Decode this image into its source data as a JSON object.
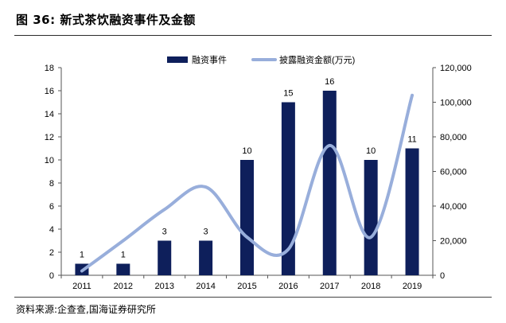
{
  "figure": {
    "title": "图 36:  新式茶饮融资事件及金额",
    "source": "资料来源:企查查,国海证券研究所"
  },
  "chart_data": {
    "type": "bar+line",
    "categories": [
      "2011",
      "2012",
      "2013",
      "2014",
      "2015",
      "2016",
      "2017",
      "2018",
      "2019"
    ],
    "series": [
      {
        "name": "融资事件",
        "type": "bar",
        "axis": "left",
        "color": "#0e1f5b",
        "values": [
          1,
          1,
          3,
          3,
          10,
          15,
          16,
          10,
          11
        ]
      },
      {
        "name": "披露融资金额(万元)",
        "type": "line",
        "axis": "right",
        "color": "#98aedb",
        "values": [
          2500,
          20000,
          38000,
          51000,
          22000,
          15000,
          75000,
          22000,
          104000
        ]
      }
    ],
    "left_axis": {
      "min": 0,
      "max": 18,
      "ticks": [
        "0",
        "2",
        "4",
        "6",
        "8",
        "10",
        "12",
        "14",
        "16",
        "18"
      ]
    },
    "right_axis": {
      "min": 0,
      "max": 120000,
      "ticks": [
        "0",
        "20,000",
        "40,000",
        "60,000",
        "80,000",
        "100,000",
        "120,000"
      ]
    },
    "data_labels": [
      "1",
      "1",
      "3",
      "3",
      "10",
      "15",
      "16",
      "10",
      "11"
    ],
    "legend_position": "top-center",
    "grid": false
  }
}
